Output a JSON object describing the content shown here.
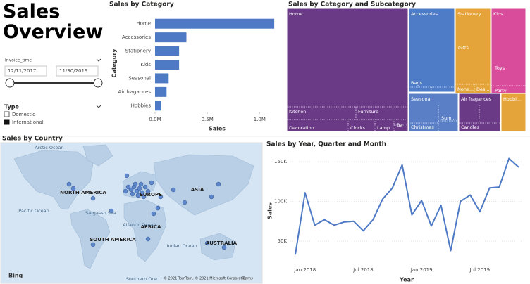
{
  "header": {
    "title": "Sales Overview"
  },
  "slicer": {
    "field": "Invoice_time",
    "start": "12/11/2017",
    "end": "11/30/2019"
  },
  "type_filter": {
    "title": "Type",
    "options": [
      "Domestic",
      "International"
    ]
  },
  "chart_data": [
    {
      "type": "bar",
      "title": "Sales by Category",
      "xlabel": "Sales",
      "ylabel": "Category",
      "orientation": "horizontal",
      "color": "#4e79c4",
      "categories": [
        "Home",
        "Accessories",
        "Stationery",
        "Kids",
        "Seasonal",
        "Air fragances",
        "Hobbies"
      ],
      "values": [
        1140000,
        300000,
        230000,
        230000,
        130000,
        110000,
        60000
      ],
      "xlim": [
        0,
        1200000
      ],
      "xticks": [
        {
          "value": 0,
          "label": "0.0M"
        },
        {
          "value": 500000,
          "label": "0.5M"
        },
        {
          "value": 1000000,
          "label": "1.0M"
        }
      ]
    },
    {
      "type": "treemap",
      "title": "Sales by Category and Subcategory",
      "groups": [
        {
          "name": "Home",
          "color": "#6b3a87",
          "children": [
            "Kitchen",
            "Furniture",
            "Decoration",
            "Clocks",
            "Lamp",
            "Ba"
          ]
        },
        {
          "name": "Accessories",
          "color": "#4f7cc6",
          "children": [
            "Bags"
          ]
        },
        {
          "name": "Stationery",
          "color": "#e5a43a",
          "children": [
            "Gifts",
            "None...",
            "Des..."
          ]
        },
        {
          "name": "Kids",
          "color": "#d94c9b",
          "children": [
            "Toys",
            "Party"
          ]
        },
        {
          "name": "Seasonal",
          "color": "#5a7fc6",
          "children": [
            "Christmas",
            "Sum..."
          ]
        },
        {
          "name": "Air fragances",
          "color": "#6b3a87",
          "children": [
            "Candles"
          ]
        },
        {
          "name": "Hobbi...",
          "color": "#e5a43a",
          "children": []
        }
      ]
    },
    {
      "type": "map",
      "title": "Sales by Country",
      "continents": [
        "NORTH AMERICA",
        "EUROPE",
        "ASIA",
        "AFRICA",
        "SOUTH AMERICA",
        "AUSTRALIA"
      ],
      "oceans": [
        "Arctic Ocean",
        "Pacific Ocean",
        "Sargasso Sea",
        "Atlantic Ocean",
        "Indian Ocean",
        "Southern Oce..."
      ],
      "provider": "Bing",
      "attribution": "© 2021 TomTom, © 2021 Microsoft Corporation",
      "terms": "Terms"
    },
    {
      "type": "line",
      "title": "Sales by Year, Quarter and Month",
      "xlabel": "Year",
      "ylabel": "Sales",
      "color": "#4e79c4",
      "x": [
        null,
        "Jan 2018",
        null,
        null,
        null,
        null,
        null,
        "Jul 2018",
        null,
        null,
        null,
        null,
        null,
        "Jan 2019",
        null,
        null,
        null,
        null,
        null,
        "Jul 2019",
        null,
        null,
        null,
        null
      ],
      "values": [
        33000,
        111000,
        70000,
        77000,
        70000,
        74000,
        75000,
        63000,
        77000,
        103000,
        117000,
        146000,
        83000,
        101000,
        69000,
        95000,
        38000,
        100000,
        108000,
        87000,
        117000,
        118000,
        154000,
        143000
      ],
      "ylim": [
        15000,
        160000
      ],
      "yticks": [
        {
          "value": 50000,
          "label": "50K"
        },
        {
          "value": 100000,
          "label": "100K"
        },
        {
          "value": 150000,
          "label": "150K"
        }
      ],
      "grid": true
    }
  ]
}
